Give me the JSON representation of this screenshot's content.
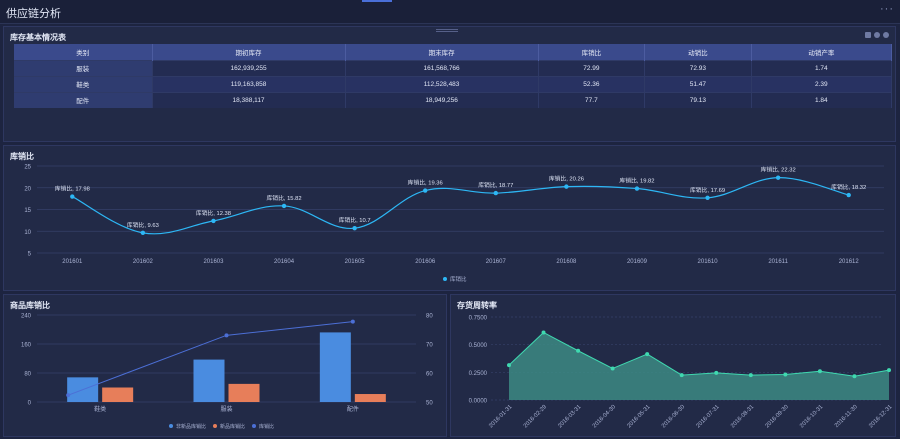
{
  "app": {
    "title": "供应链分析",
    "more": "···"
  },
  "inventory_table": {
    "title": "库存基本情况表",
    "headers": [
      "类别",
      "期初库存",
      "期末库存",
      "库销比",
      "动销比",
      "动销产率"
    ],
    "rows": [
      [
        "服装",
        "162,939,255",
        "161,568,766",
        "72.99",
        "72.93",
        "1.74"
      ],
      [
        "鞋类",
        "119,163,858",
        "112,528,483",
        "52.36",
        "51.47",
        "2.39"
      ],
      [
        "配件",
        "18,388,117",
        "18,949,256",
        "77.7",
        "79.13",
        "1.84"
      ]
    ]
  },
  "panels": {
    "ratio_title": "库销比",
    "product_title": "商品库销比",
    "turnover_title": "存货周转率"
  },
  "chart_data": [
    {
      "type": "line",
      "title": "库销比",
      "x": [
        "201601",
        "201602",
        "201603",
        "201604",
        "201605",
        "201606",
        "201607",
        "201608",
        "201609",
        "201610",
        "201611",
        "201612"
      ],
      "series": [
        {
          "name": "库销比",
          "values": [
            17.98,
            9.63,
            12.38,
            15.82,
            10.7,
            19.36,
            18.77,
            20.26,
            19.82,
            17.69,
            22.32,
            18.32
          ]
        }
      ],
      "point_label_prefix": "库销比",
      "yticks": [
        5,
        10,
        15,
        20,
        25
      ],
      "ylim": [
        5,
        25
      ],
      "legend": "bottom-center",
      "color": "#2db7f5"
    },
    {
      "type": "bar",
      "title": "商品库销比",
      "categories": [
        "鞋类",
        "服装",
        "配件"
      ],
      "series": [
        {
          "name": "非新品库销比",
          "values": [
            68,
            117,
            192
          ],
          "color": "#4a8ce0"
        },
        {
          "name": "新品库销比",
          "values": [
            40,
            50,
            22
          ],
          "color": "#e77e5a"
        },
        {
          "name": "库销比",
          "values": [
            52.36,
            72.99,
            77.7
          ],
          "color": "#4c6fd6",
          "axis": "right",
          "type": "line"
        }
      ],
      "yticks_left": [
        0,
        80,
        160,
        240
      ],
      "ylim_left": [
        0,
        240
      ],
      "yticks_right": [
        50,
        60,
        70,
        80
      ],
      "ylim_right": [
        50,
        80
      ],
      "legend": "bottom-center"
    },
    {
      "type": "area",
      "title": "存货周转率",
      "x": [
        "2016-01-31",
        "2016-02-29",
        "2016-03-31",
        "2016-04-30",
        "2016-05-31",
        "2016-06-30",
        "2016-07-31",
        "2016-08-31",
        "2016-09-30",
        "2016-10-31",
        "2016-11-30",
        "2016-12-31"
      ],
      "series": [
        {
          "name": "存货周转率",
          "values": [
            0.315,
            0.61,
            0.445,
            0.285,
            0.415,
            0.225,
            0.245,
            0.225,
            0.23,
            0.26,
            0.215,
            0.27
          ]
        }
      ],
      "yticks": [
        "0.0000",
        "0.2500",
        "0.5000",
        "0.7500"
      ],
      "ylim": [
        0,
        0.75
      ],
      "color": "#3fd9b0"
    }
  ]
}
